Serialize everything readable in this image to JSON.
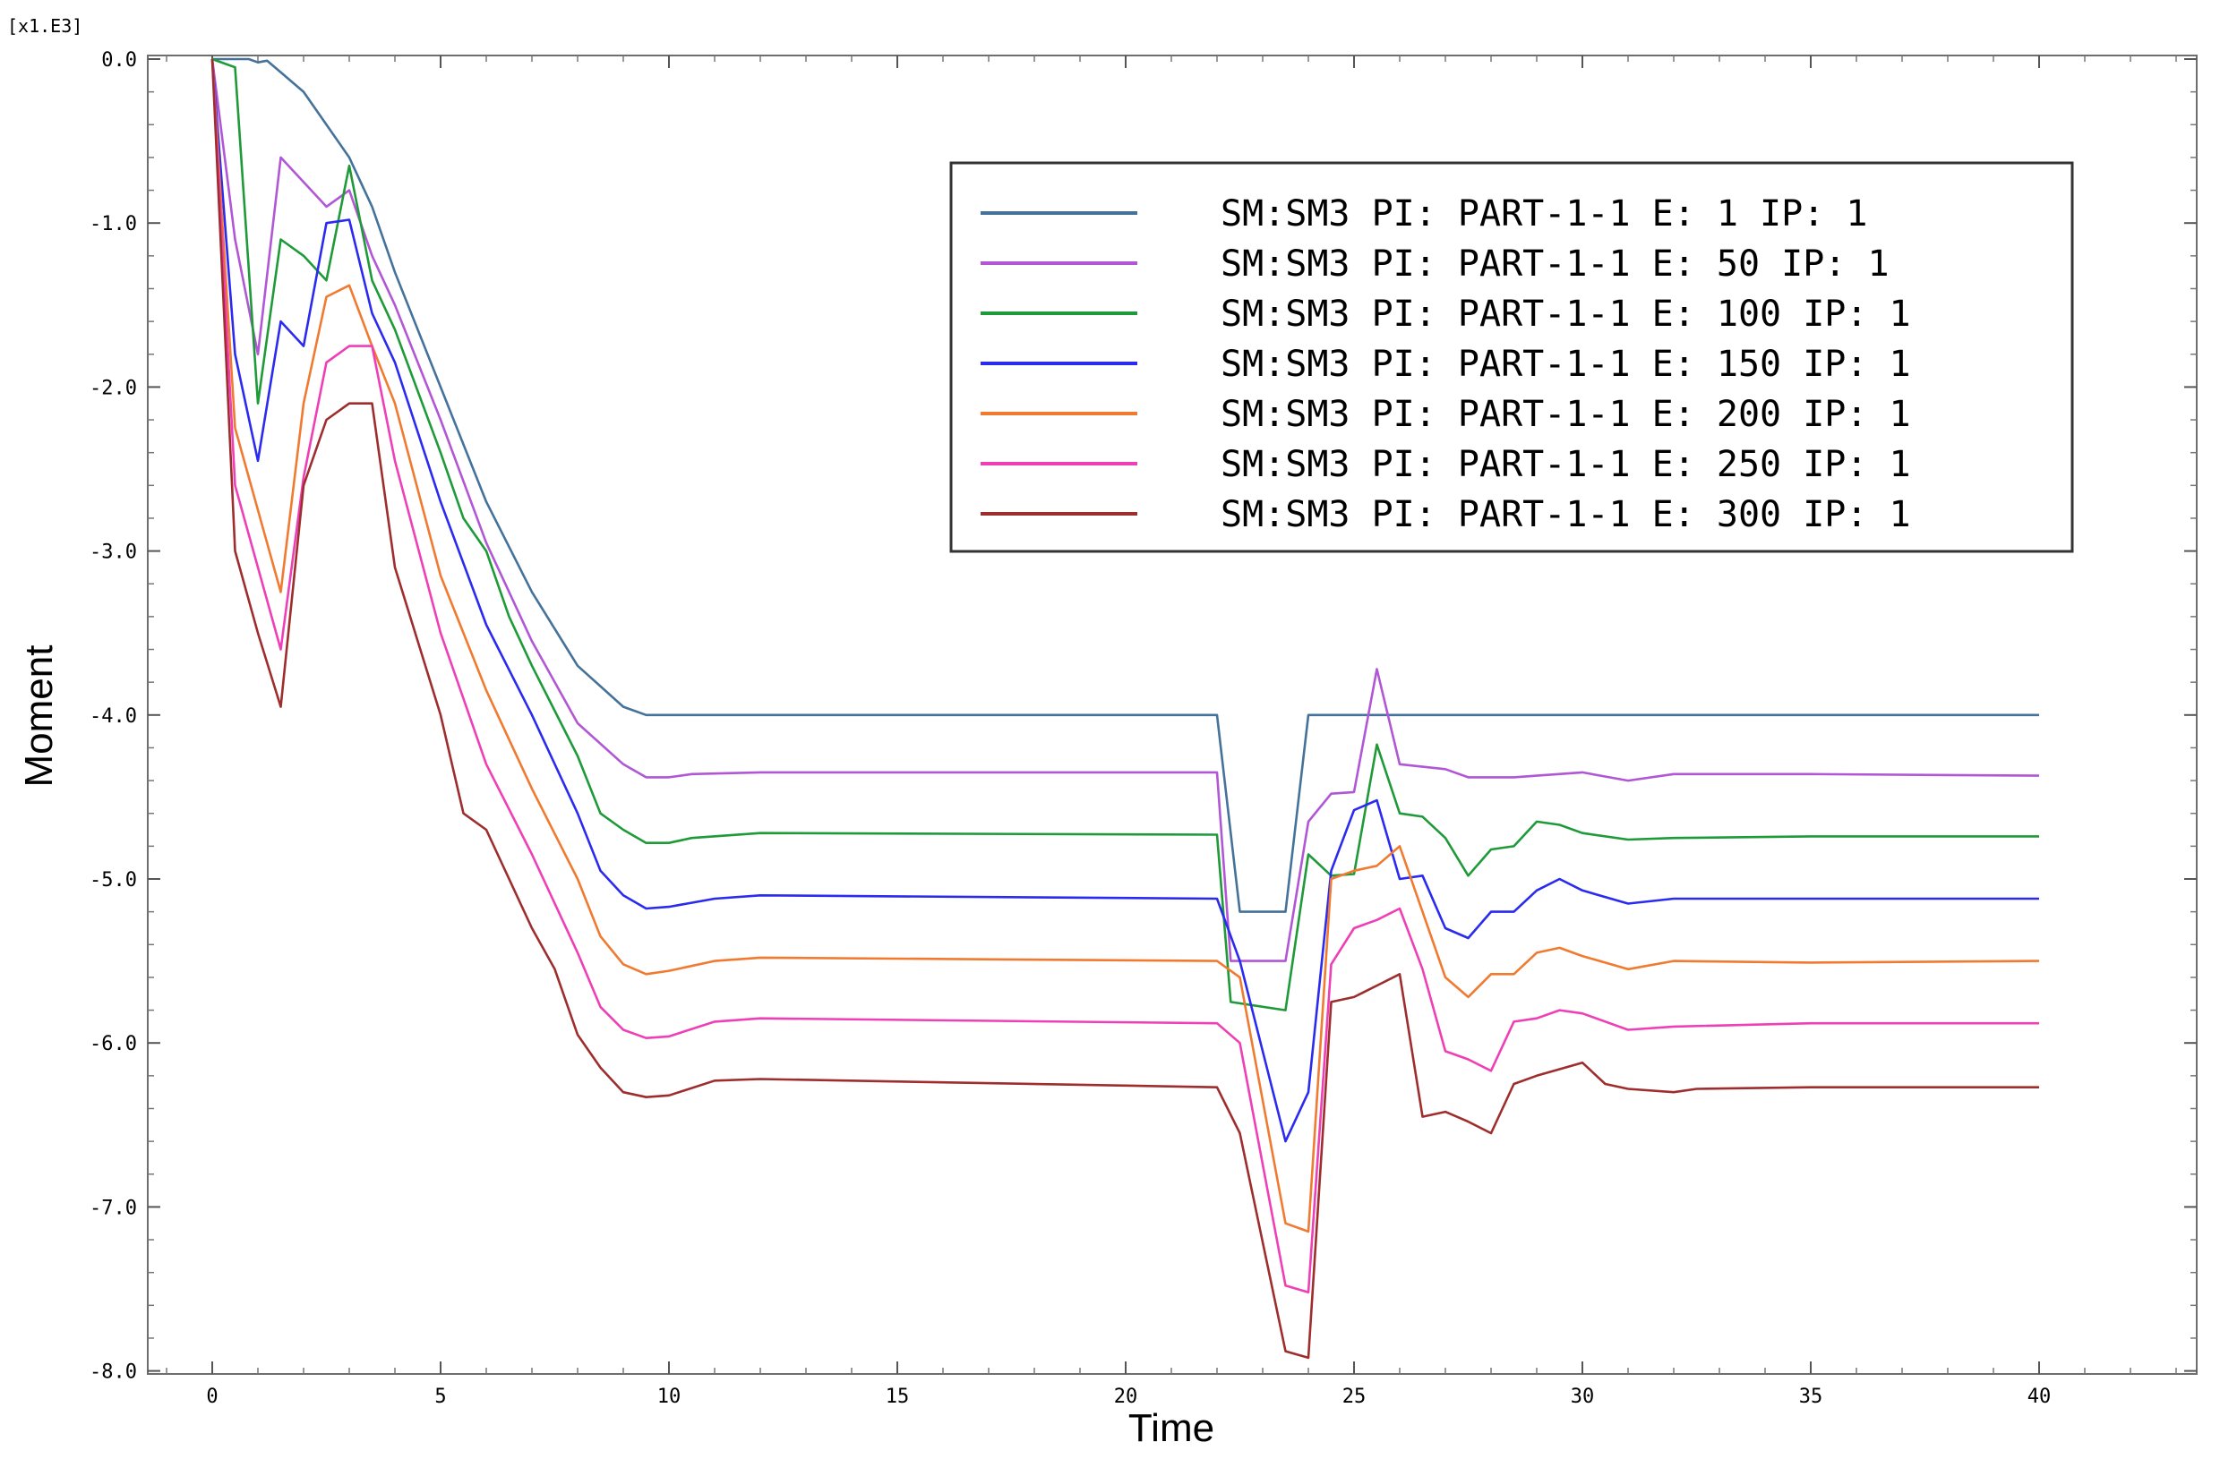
{
  "chart_data": {
    "type": "line",
    "title": "",
    "xlabel": "Time",
    "ylabel": "Moment",
    "y_multiplier": "[x1.E3]",
    "xlim": [
      -1.5,
      43.5
    ],
    "ylim": [
      -8.0,
      0.0
    ],
    "x_ticks": [
      0,
      5,
      10,
      15,
      20,
      25,
      30,
      35,
      40
    ],
    "x_tick_labels": [
      "0",
      "5",
      "10",
      "15",
      "20",
      "25",
      "30",
      "35",
      "40"
    ],
    "y_ticks": [
      0,
      -1,
      -2,
      -3,
      -4,
      -5,
      -6,
      -7,
      -8
    ],
    "y_tick_labels": [
      "0.0",
      "-1.0",
      "-2.0",
      "-3.0",
      "-4.0",
      "-5.0",
      "-6.0",
      "-7.0",
      "-8.0"
    ],
    "grid": false,
    "legend_position": "top-right",
    "series": [
      {
        "name": "SM:SM3 PI: PART-1-1 E: 1 IP: 1",
        "color": "#44729a",
        "points": [
          [
            0,
            0
          ],
          [
            0.5,
            0
          ],
          [
            0.8,
            0
          ],
          [
            1,
            -0.02
          ],
          [
            1.2,
            -0.01
          ],
          [
            1.5,
            -0.08
          ],
          [
            2,
            -0.2
          ],
          [
            3,
            -0.6
          ],
          [
            3.5,
            -0.9
          ],
          [
            4,
            -1.3
          ],
          [
            5,
            -2.0
          ],
          [
            6,
            -2.7
          ],
          [
            7,
            -3.25
          ],
          [
            8,
            -3.7
          ],
          [
            9,
            -3.95
          ],
          [
            9.5,
            -4.0
          ],
          [
            10,
            -4.0
          ],
          [
            22,
            -4.0
          ],
          [
            22.5,
            -5.2
          ],
          [
            23.5,
            -5.2
          ],
          [
            24,
            -4.0
          ],
          [
            40,
            -4.0
          ]
        ]
      },
      {
        "name": "SM:SM3 PI: PART-1-1 E: 50 IP: 1",
        "color": "#b157d6",
        "points": [
          [
            0,
            0
          ],
          [
            0.5,
            -1.1
          ],
          [
            1,
            -1.8
          ],
          [
            1.5,
            -0.6
          ],
          [
            2,
            -0.75
          ],
          [
            2.5,
            -0.9
          ],
          [
            3,
            -0.8
          ],
          [
            3.5,
            -1.2
          ],
          [
            4,
            -1.5
          ],
          [
            5,
            -2.2
          ],
          [
            6,
            -2.95
          ],
          [
            7,
            -3.55
          ],
          [
            8,
            -4.05
          ],
          [
            9,
            -4.3
          ],
          [
            9.5,
            -4.38
          ],
          [
            10,
            -4.38
          ],
          [
            10.5,
            -4.36
          ],
          [
            12,
            -4.35
          ],
          [
            22,
            -4.35
          ],
          [
            22.3,
            -5.5
          ],
          [
            23.5,
            -5.5
          ],
          [
            24,
            -4.65
          ],
          [
            24.5,
            -4.48
          ],
          [
            25,
            -4.47
          ],
          [
            25.5,
            -3.72
          ],
          [
            26,
            -4.3
          ],
          [
            27,
            -4.33
          ],
          [
            27.5,
            -4.38
          ],
          [
            28.5,
            -4.38
          ],
          [
            29,
            -4.37
          ],
          [
            30,
            -4.35
          ],
          [
            31,
            -4.4
          ],
          [
            32,
            -4.36
          ],
          [
            35,
            -4.36
          ],
          [
            40,
            -4.37
          ]
        ]
      },
      {
        "name": "SM:SM3 PI: PART-1-1 E: 100 IP: 1",
        "color": "#1f9a38",
        "points": [
          [
            0,
            0
          ],
          [
            0.5,
            -0.05
          ],
          [
            1,
            -2.1
          ],
          [
            1.5,
            -1.1
          ],
          [
            2,
            -1.2
          ],
          [
            2.5,
            -1.35
          ],
          [
            3,
            -0.65
          ],
          [
            3.5,
            -1.35
          ],
          [
            4,
            -1.65
          ],
          [
            5,
            -2.4
          ],
          [
            5.5,
            -2.8
          ],
          [
            6,
            -3.0
          ],
          [
            6.5,
            -3.4
          ],
          [
            7,
            -3.7
          ],
          [
            8,
            -4.25
          ],
          [
            8.5,
            -4.6
          ],
          [
            9,
            -4.7
          ],
          [
            9.5,
            -4.78
          ],
          [
            10,
            -4.78
          ],
          [
            10.5,
            -4.75
          ],
          [
            12,
            -4.72
          ],
          [
            22,
            -4.73
          ],
          [
            22.3,
            -5.75
          ],
          [
            23.5,
            -5.8
          ],
          [
            24,
            -4.85
          ],
          [
            24.5,
            -4.98
          ],
          [
            25,
            -4.97
          ],
          [
            25.5,
            -4.18
          ],
          [
            26,
            -4.6
          ],
          [
            26.5,
            -4.62
          ],
          [
            27,
            -4.75
          ],
          [
            27.5,
            -4.98
          ],
          [
            28,
            -4.82
          ],
          [
            28.5,
            -4.8
          ],
          [
            29,
            -4.65
          ],
          [
            29.5,
            -4.67
          ],
          [
            30,
            -4.72
          ],
          [
            31,
            -4.76
          ],
          [
            32,
            -4.75
          ],
          [
            35,
            -4.74
          ],
          [
            40,
            -4.74
          ]
        ]
      },
      {
        "name": "SM:SM3 PI: PART-1-1 E: 150 IP: 1",
        "color": "#2a2af0",
        "points": [
          [
            0,
            0
          ],
          [
            0.5,
            -1.8
          ],
          [
            1,
            -2.45
          ],
          [
            1.5,
            -1.6
          ],
          [
            2,
            -1.75
          ],
          [
            2.5,
            -1.0
          ],
          [
            3,
            -0.98
          ],
          [
            3.5,
            -1.55
          ],
          [
            4,
            -1.85
          ],
          [
            5,
            -2.7
          ],
          [
            6,
            -3.45
          ],
          [
            7,
            -4.0
          ],
          [
            8,
            -4.6
          ],
          [
            8.5,
            -4.95
          ],
          [
            9,
            -5.1
          ],
          [
            9.5,
            -5.18
          ],
          [
            10,
            -5.17
          ],
          [
            11,
            -5.12
          ],
          [
            12,
            -5.1
          ],
          [
            22,
            -5.12
          ],
          [
            22.5,
            -5.5
          ],
          [
            23.5,
            -6.6
          ],
          [
            24,
            -6.3
          ],
          [
            24.5,
            -4.95
          ],
          [
            25,
            -4.58
          ],
          [
            25.5,
            -4.52
          ],
          [
            26,
            -5.0
          ],
          [
            26.5,
            -4.98
          ],
          [
            27,
            -5.3
          ],
          [
            27.5,
            -5.36
          ],
          [
            28,
            -5.2
          ],
          [
            28.5,
            -5.2
          ],
          [
            29,
            -5.07
          ],
          [
            29.5,
            -5.0
          ],
          [
            30,
            -5.07
          ],
          [
            31,
            -5.15
          ],
          [
            32,
            -5.12
          ],
          [
            35,
            -5.12
          ],
          [
            40,
            -5.12
          ]
        ]
      },
      {
        "name": "SM:SM3 PI: PART-1-1 E: 200 IP: 1",
        "color": "#f07a30",
        "points": [
          [
            0,
            0
          ],
          [
            0.5,
            -2.25
          ],
          [
            1,
            -2.75
          ],
          [
            1.5,
            -3.25
          ],
          [
            2,
            -2.1
          ],
          [
            2.5,
            -1.45
          ],
          [
            3,
            -1.38
          ],
          [
            3.5,
            -1.75
          ],
          [
            4,
            -2.1
          ],
          [
            5,
            -3.15
          ],
          [
            6,
            -3.85
          ],
          [
            7,
            -4.45
          ],
          [
            8,
            -5.0
          ],
          [
            8.5,
            -5.35
          ],
          [
            9,
            -5.52
          ],
          [
            9.5,
            -5.58
          ],
          [
            10,
            -5.56
          ],
          [
            11,
            -5.5
          ],
          [
            12,
            -5.48
          ],
          [
            22,
            -5.5
          ],
          [
            22.5,
            -5.6
          ],
          [
            23.5,
            -7.1
          ],
          [
            24,
            -7.15
          ],
          [
            24.5,
            -5.0
          ],
          [
            25,
            -4.95
          ],
          [
            25.5,
            -4.92
          ],
          [
            26,
            -4.8
          ],
          [
            26.5,
            -5.2
          ],
          [
            27,
            -5.6
          ],
          [
            27.5,
            -5.72
          ],
          [
            28,
            -5.58
          ],
          [
            28.5,
            -5.58
          ],
          [
            29,
            -5.45
          ],
          [
            29.5,
            -5.42
          ],
          [
            30,
            -5.47
          ],
          [
            31,
            -5.55
          ],
          [
            32,
            -5.5
          ],
          [
            35,
            -5.51
          ],
          [
            40,
            -5.5
          ]
        ]
      },
      {
        "name": "SM:SM3 PI: PART-1-1 E: 250 IP: 1",
        "color": "#ef3fb6",
        "points": [
          [
            0,
            0
          ],
          [
            0.5,
            -2.6
          ],
          [
            1,
            -3.1
          ],
          [
            1.5,
            -3.6
          ],
          [
            2,
            -2.55
          ],
          [
            2.5,
            -1.85
          ],
          [
            3,
            -1.75
          ],
          [
            3.5,
            -1.75
          ],
          [
            4,
            -2.45
          ],
          [
            5,
            -3.5
          ],
          [
            6,
            -4.3
          ],
          [
            7,
            -4.85
          ],
          [
            8,
            -5.45
          ],
          [
            8.5,
            -5.78
          ],
          [
            9,
            -5.92
          ],
          [
            9.5,
            -5.97
          ],
          [
            10,
            -5.96
          ],
          [
            11,
            -5.87
          ],
          [
            12,
            -5.85
          ],
          [
            22,
            -5.88
          ],
          [
            22.5,
            -6.0
          ],
          [
            23.5,
            -7.48
          ],
          [
            24,
            -7.52
          ],
          [
            24.5,
            -5.52
          ],
          [
            25,
            -5.3
          ],
          [
            25.5,
            -5.25
          ],
          [
            26,
            -5.18
          ],
          [
            26.5,
            -5.55
          ],
          [
            27,
            -6.05
          ],
          [
            27.5,
            -6.1
          ],
          [
            28,
            -6.17
          ],
          [
            28.5,
            -5.87
          ],
          [
            29,
            -5.85
          ],
          [
            29.5,
            -5.8
          ],
          [
            30,
            -5.82
          ],
          [
            31,
            -5.92
          ],
          [
            32,
            -5.9
          ],
          [
            35,
            -5.88
          ],
          [
            40,
            -5.88
          ]
        ]
      },
      {
        "name": "SM:SM3 PI: PART-1-1 E: 300 IP: 1",
        "color": "#9e2d2d",
        "points": [
          [
            0,
            0
          ],
          [
            0.5,
            -3.0
          ],
          [
            1,
            -3.5
          ],
          [
            1.5,
            -3.95
          ],
          [
            2,
            -2.6
          ],
          [
            2.5,
            -2.2
          ],
          [
            3,
            -2.1
          ],
          [
            3.5,
            -2.1
          ],
          [
            4,
            -3.1
          ],
          [
            5,
            -4.0
          ],
          [
            5.5,
            -4.6
          ],
          [
            6,
            -4.7
          ],
          [
            7,
            -5.3
          ],
          [
            7.5,
            -5.55
          ],
          [
            8,
            -5.95
          ],
          [
            8.5,
            -6.15
          ],
          [
            9,
            -6.3
          ],
          [
            9.5,
            -6.33
          ],
          [
            10,
            -6.32
          ],
          [
            11,
            -6.23
          ],
          [
            12,
            -6.22
          ],
          [
            22,
            -6.27
          ],
          [
            22.5,
            -6.55
          ],
          [
            23.5,
            -7.88
          ],
          [
            24,
            -7.92
          ],
          [
            24.5,
            -5.75
          ],
          [
            25,
            -5.72
          ],
          [
            25.5,
            -5.65
          ],
          [
            26,
            -5.58
          ],
          [
            26.5,
            -6.45
          ],
          [
            27,
            -6.42
          ],
          [
            27.5,
            -6.48
          ],
          [
            28,
            -6.55
          ],
          [
            28.5,
            -6.25
          ],
          [
            29,
            -6.2
          ],
          [
            30,
            -6.12
          ],
          [
            30.5,
            -6.25
          ],
          [
            31,
            -6.28
          ],
          [
            32,
            -6.3
          ],
          [
            32.5,
            -6.28
          ],
          [
            35,
            -6.27
          ],
          [
            40,
            -6.27
          ]
        ]
      }
    ]
  }
}
